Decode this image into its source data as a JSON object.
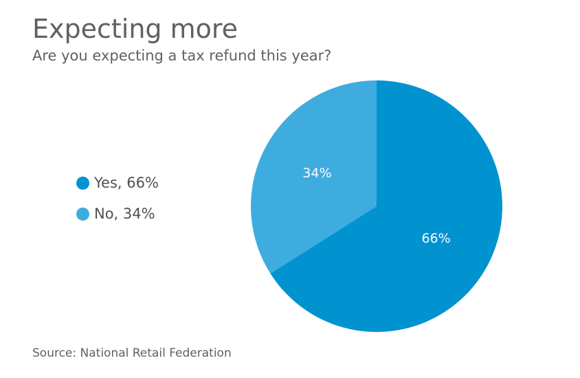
{
  "header": {
    "title": "Expecting more",
    "subtitle": "Are you expecting a tax refund this year?"
  },
  "footer": {
    "source": "Source: National Retail Federation"
  },
  "chart_data": {
    "type": "pie",
    "title": "Expecting more",
    "subtitle": "Are you expecting a tax refund this year?",
    "categories": [
      "Yes",
      "No"
    ],
    "values": [
      66,
      34
    ],
    "unit": "%",
    "colors": [
      "#0093d0",
      "#3eacdf"
    ],
    "legend": {
      "placement": "left",
      "entries": [
        "Yes, 66%",
        "No, 34%"
      ]
    },
    "data_labels": [
      "66%",
      "34%"
    ]
  }
}
